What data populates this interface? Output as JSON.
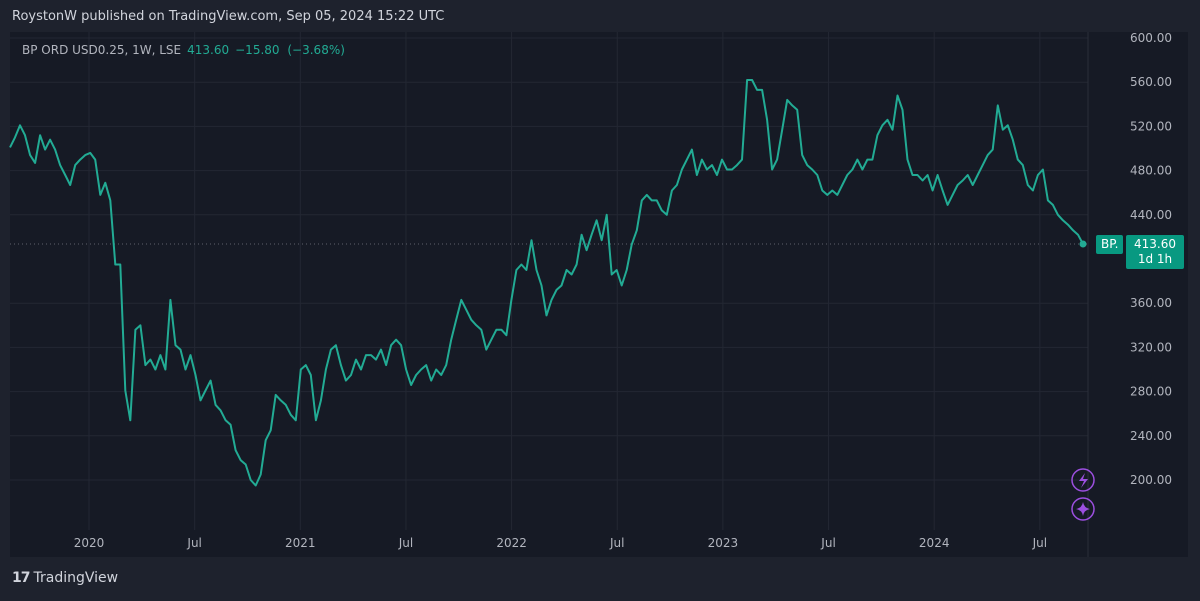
{
  "header": {
    "publisher": "RoystonW published on TradingView.com, Sep 05, 2024 15:22 UTC"
  },
  "legend": {
    "symbol": "BP ORD USD0.25, 1W, LSE",
    "last": "413.60",
    "change": "−15.80",
    "change_pct": "(−3.68%)"
  },
  "price_badge": {
    "ticker": "BP.",
    "price": "413.60",
    "countdown": "1d 1h"
  },
  "footer": {
    "logo_text": "TradingView"
  },
  "colors": {
    "line": "#22ab94",
    "badge": "#089981",
    "icons": "#9c4fe0"
  },
  "chart_data": {
    "type": "line",
    "title": "BP ORD USD0.25, 1W, LSE",
    "x_start": "2019-10",
    "x_end": "2024-08-30",
    "ylim": [
      160,
      610
    ],
    "y_ticks": [
      600,
      560,
      520,
      480,
      440,
      360,
      320,
      280,
      240,
      200
    ],
    "y_tick_labels": [
      "600.00",
      "560.00",
      "520.00",
      "480.00",
      "440.00",
      "360.00",
      "320.00",
      "280.00",
      "240.00",
      "200.00"
    ],
    "x_ticks": [
      {
        "label": "2020",
        "t": 2020.0
      },
      {
        "label": "Jul",
        "t": 2020.5
      },
      {
        "label": "2021",
        "t": 2021.0
      },
      {
        "label": "Jul",
        "t": 2021.5
      },
      {
        "label": "2022",
        "t": 2022.0
      },
      {
        "label": "Jul",
        "t": 2022.5
      },
      {
        "label": "2023",
        "t": 2023.0
      },
      {
        "label": "Jul",
        "t": 2023.5
      },
      {
        "label": "2024",
        "t": 2024.0
      },
      {
        "label": "Jul",
        "t": 2024.5
      }
    ],
    "last_value": 413.6,
    "values": [
      501,
      510,
      521,
      512,
      494,
      487,
      512,
      499,
      508,
      499,
      485,
      476,
      467,
      485,
      490,
      494,
      496,
      490,
      458,
      469,
      453,
      395,
      395,
      281,
      254,
      336,
      340,
      304,
      309,
      300,
      313,
      300,
      363,
      322,
      318,
      300,
      313,
      295,
      272,
      281,
      290,
      268,
      263,
      254,
      250,
      227,
      218,
      214,
      200,
      195,
      205,
      236,
      245,
      277,
      272,
      268,
      259,
      254,
      300,
      304,
      295,
      254,
      272,
      300,
      318,
      322,
      304,
      290,
      295,
      309,
      300,
      313,
      313,
      309,
      318,
      304,
      322,
      327,
      322,
      300,
      286,
      295,
      300,
      304,
      290,
      300,
      295,
      304,
      327,
      345,
      363,
      354,
      345,
      340,
      336,
      318,
      327,
      336,
      336,
      331,
      363,
      390,
      395,
      390,
      417,
      390,
      376,
      349,
      363,
      372,
      376,
      390,
      386,
      395,
      422,
      408,
      422,
      435,
      417,
      440,
      386,
      390,
      376,
      390,
      413,
      426,
      453,
      458,
      453,
      453,
      444,
      440,
      462,
      467,
      481,
      490,
      499,
      476,
      490,
      481,
      485,
      476,
      490,
      481,
      481,
      485,
      490,
      562,
      562,
      553,
      553,
      526,
      481,
      490,
      517,
      544,
      539,
      535,
      494,
      485,
      481,
      476,
      462,
      458,
      462,
      458,
      467,
      476,
      481,
      490,
      481,
      490,
      490,
      512,
      521,
      526,
      517,
      548,
      535,
      490,
      476,
      476,
      471,
      476,
      462,
      476,
      462,
      449,
      458,
      467,
      471,
      476,
      467,
      476,
      485,
      494,
      499,
      539,
      517,
      521,
      508,
      490,
      485,
      467,
      462,
      476,
      481,
      453,
      449,
      440,
      435,
      431,
      426,
      422,
      413.6
    ]
  }
}
